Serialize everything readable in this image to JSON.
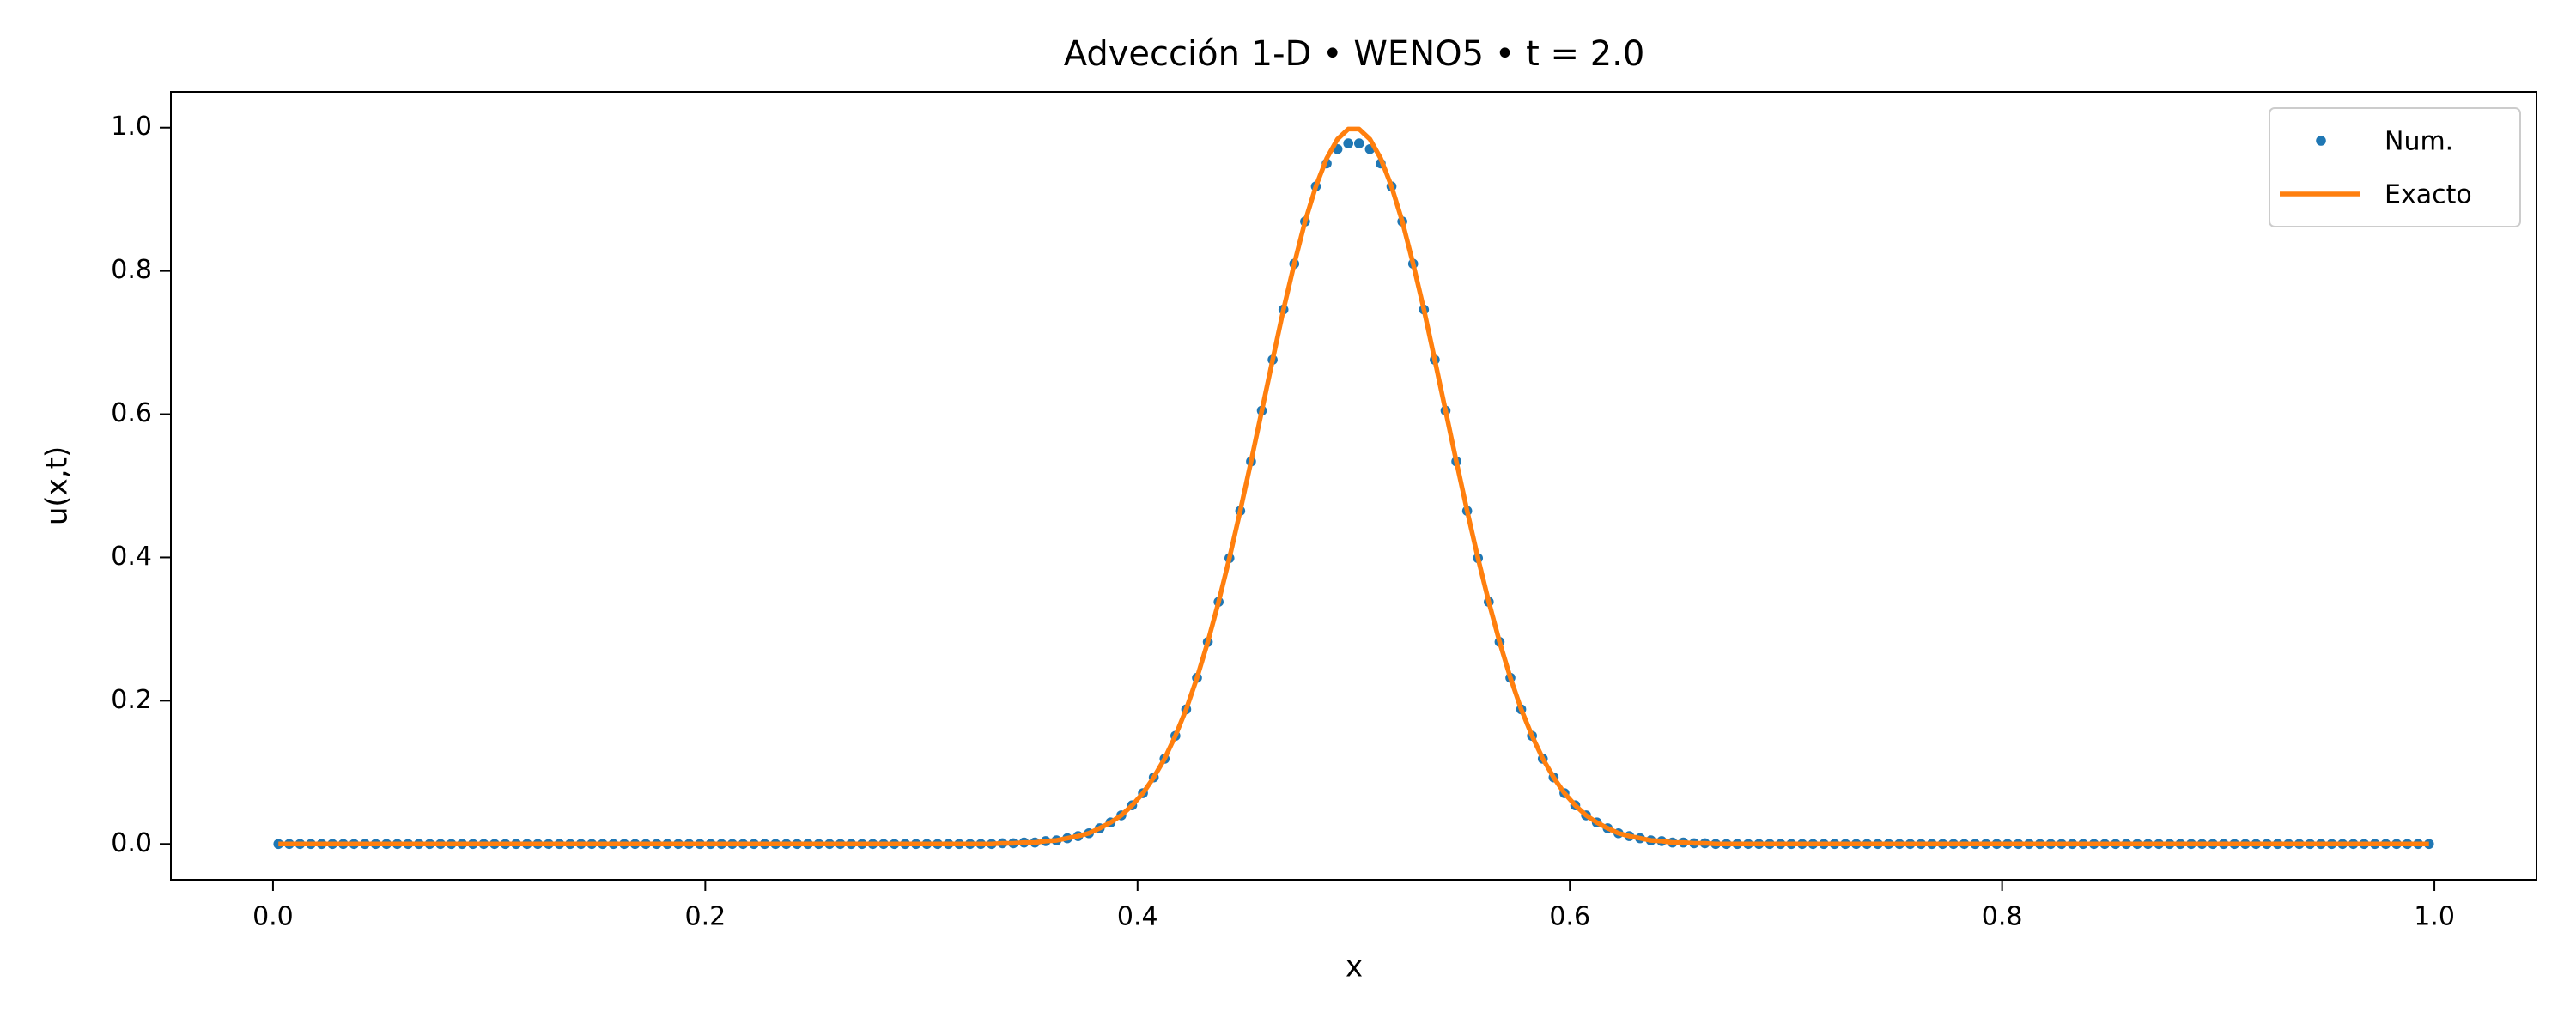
{
  "chart_data": {
    "type": "line",
    "title": "Advección 1-D • WENO5 • t = 2.0",
    "xlabel": "x",
    "ylabel": "u(x,t)",
    "x": [
      0.0025,
      0.0075,
      0.0125,
      0.0175,
      0.0225,
      0.0275,
      0.0325,
      0.0375,
      0.0425,
      0.0475,
      0.0525,
      0.0575,
      0.0625,
      0.0675,
      0.0725,
      0.0775,
      0.0825,
      0.0875,
      0.0925,
      0.0975,
      0.1025,
      0.1075,
      0.1125,
      0.1175,
      0.1225,
      0.1275,
      0.1325,
      0.1375,
      0.1425,
      0.1475,
      0.1525,
      0.1575,
      0.1625,
      0.1675,
      0.1725,
      0.1775,
      0.1825,
      0.1875,
      0.1925,
      0.1975,
      0.2025,
      0.2075,
      0.2125,
      0.2175,
      0.2225,
      0.2275,
      0.2325,
      0.2375,
      0.2425,
      0.2475,
      0.2525,
      0.2575,
      0.2625,
      0.2675,
      0.2725,
      0.2775,
      0.2825,
      0.2875,
      0.2925,
      0.2975,
      0.3025,
      0.3075,
      0.3125,
      0.3175,
      0.3225,
      0.3275,
      0.3325,
      0.3375,
      0.3425,
      0.3475,
      0.3525,
      0.3575,
      0.3625,
      0.3675,
      0.3725,
      0.3775,
      0.3825,
      0.3875,
      0.3925,
      0.3975,
      0.4025,
      0.4075,
      0.4125,
      0.4175,
      0.4225,
      0.4275,
      0.4325,
      0.4375,
      0.4425,
      0.4475,
      0.4525,
      0.4575,
      0.4625,
      0.4675,
      0.4725,
      0.4775,
      0.4825,
      0.4875,
      0.4925,
      0.4975,
      0.5025,
      0.5075,
      0.5125,
      0.5175,
      0.5225,
      0.5275,
      0.5325,
      0.5375,
      0.5425,
      0.5475,
      0.5525,
      0.5575,
      0.5625,
      0.5675,
      0.5725,
      0.5775,
      0.5825,
      0.5875,
      0.5925,
      0.5975,
      0.6025,
      0.6075,
      0.6125,
      0.6175,
      0.6225,
      0.6275,
      0.6325,
      0.6375,
      0.6425,
      0.6475,
      0.6525,
      0.6575,
      0.6625,
      0.6675,
      0.6725,
      0.6775,
      0.6825,
      0.6875,
      0.6925,
      0.6975,
      0.7025,
      0.7075,
      0.7125,
      0.7175,
      0.7225,
      0.7275,
      0.7325,
      0.7375,
      0.7425,
      0.7475,
      0.7525,
      0.7575,
      0.7625,
      0.7675,
      0.7725,
      0.7775,
      0.7825,
      0.7875,
      0.7925,
      0.7975,
      0.8025,
      0.8075,
      0.8125,
      0.8175,
      0.8225,
      0.8275,
      0.8325,
      0.8375,
      0.8425,
      0.8475,
      0.8525,
      0.8575,
      0.8625,
      0.8675,
      0.8725,
      0.8775,
      0.8825,
      0.8875,
      0.8925,
      0.8975,
      0.9025,
      0.9075,
      0.9125,
      0.9175,
      0.9225,
      0.9275,
      0.9325,
      0.9375,
      0.9425,
      0.9475,
      0.9525,
      0.9575,
      0.9625,
      0.9675,
      0.9725,
      0.9775,
      0.9825,
      0.9875,
      0.9925,
      0.9975
    ],
    "series": [
      {
        "name": "Num.",
        "color": "#1f77b4",
        "style": "markers",
        "values": [
          0,
          0,
          0,
          0,
          0,
          0,
          0,
          0,
          0,
          0,
          0,
          0,
          0,
          0,
          0,
          0,
          0,
          0,
          0,
          0,
          0,
          0,
          0,
          0,
          0,
          0,
          0,
          0,
          0,
          0,
          0,
          0,
          0,
          0,
          0,
          0,
          0,
          0,
          0,
          0,
          0,
          0,
          0,
          0,
          0,
          0,
          0,
          0,
          0,
          0,
          0,
          0,
          0,
          0,
          0,
          0,
          0,
          0,
          0,
          0,
          0,
          0,
          0,
          0,
          0,
          0,
          0,
          0.001,
          0.001,
          0.002,
          0.002,
          0.004,
          0.005,
          0.008,
          0.011,
          0.015,
          0.022,
          0.03,
          0.04,
          0.054,
          0.071,
          0.093,
          0.119,
          0.151,
          0.188,
          0.232,
          0.282,
          0.338,
          0.399,
          0.465,
          0.534,
          0.605,
          0.676,
          0.746,
          0.81,
          0.869,
          0.918,
          0.95,
          0.97,
          0.978,
          0.978,
          0.97,
          0.95,
          0.918,
          0.869,
          0.81,
          0.746,
          0.676,
          0.605,
          0.534,
          0.465,
          0.399,
          0.338,
          0.282,
          0.232,
          0.188,
          0.151,
          0.119,
          0.093,
          0.071,
          0.054,
          0.04,
          0.03,
          0.022,
          0.015,
          0.011,
          0.008,
          0.005,
          0.004,
          0.002,
          0.002,
          0.001,
          0.001,
          0,
          0,
          0,
          0,
          0,
          0,
          0,
          0,
          0,
          0,
          0,
          0,
          0,
          0,
          0,
          0,
          0,
          0,
          0,
          0,
          0,
          0,
          0,
          0,
          0,
          0,
          0,
          0,
          0,
          0,
          0,
          0,
          0,
          0,
          0,
          0,
          0,
          0,
          0,
          0,
          0,
          0,
          0,
          0,
          0,
          0,
          0,
          0,
          0,
          0,
          0,
          0,
          0,
          0,
          0,
          0,
          0,
          0,
          0,
          0,
          0,
          0,
          0,
          0,
          0,
          0,
          0
        ]
      },
      {
        "name": "Exacto",
        "color": "#ff7f0e",
        "style": "line",
        "values": [
          0,
          0,
          0,
          0,
          0,
          0,
          0,
          0,
          0,
          0,
          0,
          0,
          0,
          0,
          0,
          0,
          0,
          0,
          0,
          0,
          0,
          0,
          0,
          0,
          0,
          0,
          0,
          0,
          0,
          0,
          0,
          0,
          0,
          0,
          0,
          0,
          0,
          0,
          0,
          0,
          0,
          0,
          0,
          0,
          0,
          0,
          0,
          0,
          0,
          0,
          0,
          0,
          0,
          0,
          0,
          0,
          0,
          0,
          0,
          0,
          0,
          0,
          0,
          0,
          0,
          0,
          0,
          0.001,
          0.001,
          0.002,
          0.002,
          0.004,
          0.005,
          0.008,
          0.011,
          0.015,
          0.022,
          0.03,
          0.04,
          0.054,
          0.071,
          0.093,
          0.119,
          0.151,
          0.188,
          0.232,
          0.282,
          0.338,
          0.399,
          0.465,
          0.534,
          0.605,
          0.676,
          0.746,
          0.81,
          0.869,
          0.918,
          0.957,
          0.984,
          0.998,
          0.998,
          0.984,
          0.957,
          0.918,
          0.869,
          0.81,
          0.746,
          0.676,
          0.605,
          0.534,
          0.465,
          0.399,
          0.338,
          0.282,
          0.232,
          0.188,
          0.151,
          0.119,
          0.093,
          0.071,
          0.054,
          0.04,
          0.03,
          0.022,
          0.015,
          0.011,
          0.008,
          0.005,
          0.004,
          0.002,
          0.002,
          0.001,
          0.001,
          0,
          0,
          0,
          0,
          0,
          0,
          0,
          0,
          0,
          0,
          0,
          0,
          0,
          0,
          0,
          0,
          0,
          0,
          0,
          0,
          0,
          0,
          0,
          0,
          0,
          0,
          0,
          0,
          0,
          0,
          0,
          0,
          0,
          0,
          0,
          0,
          0,
          0,
          0,
          0,
          0,
          0,
          0,
          0,
          0,
          0,
          0,
          0,
          0,
          0,
          0,
          0,
          0,
          0,
          0,
          0,
          0,
          0,
          0,
          0,
          0,
          0,
          0,
          0,
          0,
          0,
          0
        ]
      }
    ],
    "xlim": [
      -0.04725,
      1.04725
    ],
    "ylim": [
      -0.05,
      1.05
    ],
    "xticks": [
      {
        "value": 0,
        "label": "0.0"
      },
      0.2,
      0.4,
      0.6,
      0.8,
      {
        "value": 1,
        "label": "1.0"
      }
    ],
    "yticks": [
      {
        "value": 0,
        "label": "0.0"
      },
      0.2,
      0.4,
      0.6,
      0.8,
      {
        "value": 1,
        "label": "1.0"
      }
    ],
    "legend": "upper right"
  }
}
